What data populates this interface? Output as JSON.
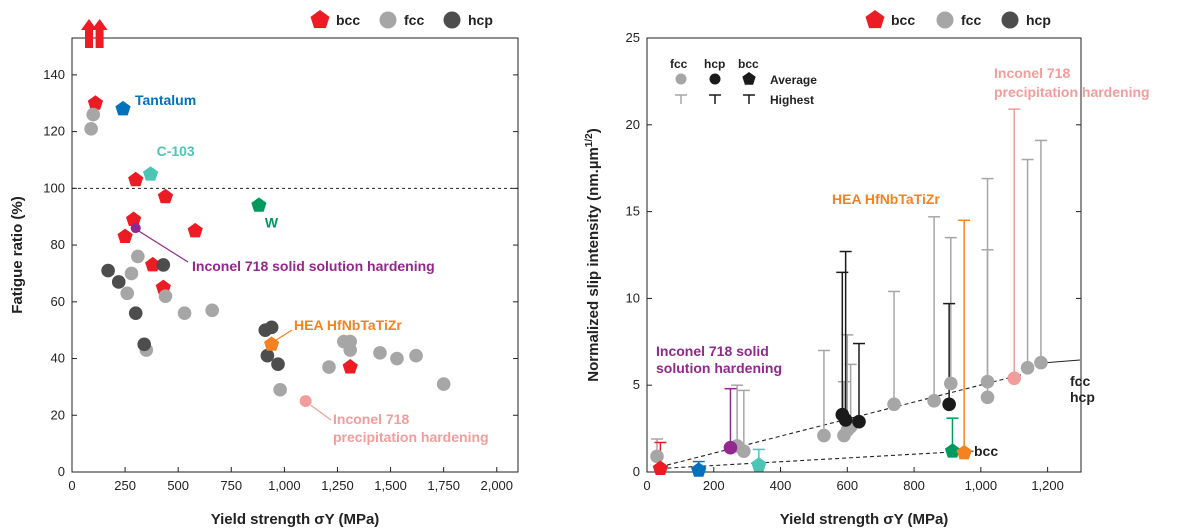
{
  "colors": {
    "bcc": "#ed1c24",
    "fcc": "#a6a6a6",
    "hcp": "#4d4d4d",
    "hcp_avg": "#1a1a1a",
    "tantalum": "#0072bc",
    "c103": "#4cc5b5",
    "w": "#009a5e",
    "inconel_ss": "#92278f",
    "hea": "#f58220",
    "inconel_ph": "#f29d9b"
  },
  "chart_data": [
    {
      "type": "scatter",
      "xlabel": "Yield strength σY (MPa)",
      "ylabel": "Fatigue ratio (%)",
      "xlim": [
        0,
        2100
      ],
      "ylim": [
        0,
        153
      ],
      "xticks": [
        0,
        250,
        500,
        750,
        1000,
        1250,
        1500,
        1750,
        2000
      ],
      "xtick_labels": [
        "0",
        "250",
        "500",
        "750",
        "1,000",
        "1,250",
        "1,500",
        "1,750",
        "2,000"
      ],
      "yticks": [
        0,
        20,
        40,
        60,
        80,
        100,
        120,
        140
      ],
      "reference_line": 100,
      "legend": [
        "bcc",
        "fcc",
        "hcp"
      ],
      "offscale_arrows": [
        {
          "x": 80
        },
        {
          "x": 130
        }
      ],
      "series": [
        {
          "name": "bcc",
          "color": "#ed1c24",
          "marker": "pentagon",
          "points": [
            [
              110,
              130
            ],
            [
              300,
              103
            ],
            [
              440,
              97
            ],
            [
              290,
              89
            ],
            [
              580,
              85
            ],
            [
              250,
              83
            ],
            [
              380,
              73
            ],
            [
              430,
              65
            ],
            [
              1310,
              37
            ]
          ]
        },
        {
          "name": "fcc",
          "color": "#a6a6a6",
          "marker": "circle",
          "points": [
            [
              100,
              126
            ],
            [
              90,
              121
            ],
            [
              310,
              76
            ],
            [
              280,
              70
            ],
            [
              440,
              62
            ],
            [
              260,
              63
            ],
            [
              530,
              56
            ],
            [
              660,
              57
            ],
            [
              350,
              43
            ],
            [
              1280,
              46
            ],
            [
              1310,
              46
            ],
            [
              1310,
              43
            ],
            [
              1450,
              42
            ],
            [
              1530,
              40
            ],
            [
              1620,
              41
            ],
            [
              1210,
              37
            ],
            [
              980,
              29
            ],
            [
              1750,
              31
            ]
          ]
        },
        {
          "name": "hcp",
          "color": "#4d4d4d",
          "marker": "circle",
          "points": [
            [
              170,
              71
            ],
            [
              220,
              67
            ],
            [
              430,
              73
            ],
            [
              300,
              56
            ],
            [
              340,
              45
            ],
            [
              910,
              50
            ],
            [
              940,
              51
            ],
            [
              920,
              41
            ],
            [
              970,
              38
            ]
          ]
        }
      ],
      "annotations": [
        {
          "label": "Tantalum",
          "x": 240,
          "y": 128,
          "color": "#0072bc",
          "marker": "pentagon"
        },
        {
          "label": "C-103",
          "x": 370,
          "y": 105,
          "color": "#4cc5b5",
          "marker": "pentagon"
        },
        {
          "label": "W",
          "x": 880,
          "y": 94,
          "color": "#009a5e",
          "marker": "pentagon"
        },
        {
          "label": "Inconel 718 solid solution hardening",
          "x": 300,
          "y": 86,
          "color": "#92278f",
          "marker": "circle"
        },
        {
          "label": "HEA HfNbTaTiZr",
          "x": 940,
          "y": 45,
          "color": "#f58220",
          "marker": "pentagon"
        },
        {
          "label": "Inconel 718",
          "label2": "precipitation hardening",
          "x": 1100,
          "y": 25,
          "color": "#f29d9b",
          "marker": "circle"
        }
      ]
    },
    {
      "type": "scatter",
      "xlabel": "Yield strength σY (MPa)",
      "ylabel": "Normalized slip intensity (nm.µm1/2)",
      "xlim": [
        0,
        1300
      ],
      "ylim": [
        0,
        25
      ],
      "xticks": [
        0,
        200,
        400,
        600,
        800,
        1000,
        1200
      ],
      "xtick_labels": [
        "0",
        "200",
        "400",
        "600",
        "800",
        "1,000",
        "1,200"
      ],
      "yticks": [
        0,
        5,
        10,
        15,
        20,
        25
      ],
      "legend": [
        "bcc",
        "fcc",
        "hcp"
      ],
      "inner_legend": {
        "headers": [
          "fcc",
          "hcp",
          "bcc"
        ],
        "rows": [
          "Average",
          "Highest"
        ]
      },
      "series": [
        {
          "name": "fcc",
          "color": "#a6a6a6",
          "marker": "circle",
          "points": [
            [
              30,
              0.9,
              1.9
            ],
            [
              270,
              1.5,
              5.0
            ],
            [
              290,
              1.2,
              4.7
            ],
            [
              530,
              2.1,
              7.0
            ],
            [
              590,
              2.1,
              5.2
            ],
            [
              600,
              2.4,
              7.9
            ],
            [
              610,
              2.6,
              6.2
            ],
            [
              740,
              3.9,
              10.4
            ],
            [
              860,
              4.1,
              14.7
            ],
            [
              910,
              5.1,
              13.5
            ],
            [
              1020,
              5.2,
              16.9
            ],
            [
              1020,
              4.3,
              12.8
            ],
            [
              1140,
              6.0,
              18.0
            ],
            [
              1180,
              6.3,
              19.1
            ]
          ]
        },
        {
          "name": "hcp",
          "color": "#1a1a1a",
          "marker": "circle",
          "points": [
            [
              585,
              3.3,
              11.5
            ],
            [
              595,
              3.0,
              12.7
            ],
            [
              635,
              2.9,
              7.4
            ],
            [
              905,
              3.9,
              9.7
            ]
          ]
        },
        {
          "name": "bcc",
          "color": "#ed1c24",
          "marker": "pentagon",
          "points": [
            [
              40,
              0.2,
              1.7
            ]
          ]
        },
        {
          "name": "Tantalum",
          "color": "#0072bc",
          "marker": "pentagon",
          "points": [
            [
              155,
              0.1,
              0.6
            ]
          ]
        },
        {
          "name": "C-103",
          "color": "#4cc5b5",
          "marker": "pentagon",
          "points": [
            [
              335,
              0.4,
              1.3
            ]
          ]
        },
        {
          "name": "W",
          "color": "#009a5e",
          "marker": "pentagon",
          "points": [
            [
              915,
              1.2,
              3.1
            ]
          ]
        },
        {
          "name": "Inconel 718 solid solution hardening",
          "color": "#92278f",
          "marker": "circle",
          "points": [
            [
              250,
              1.4,
              4.8
            ]
          ]
        },
        {
          "name": "HEA HfNbTaTiZr",
          "color": "#f58220",
          "marker": "pentagon",
          "points": [
            [
              950,
              1.1,
              14.5
            ]
          ]
        },
        {
          "name": "Inconel 718 precipitation hardening",
          "color": "#f29d9b",
          "marker": "circle",
          "points": [
            [
              1100,
              5.4,
              20.9
            ]
          ]
        }
      ],
      "trend_lines": [
        {
          "label": "fcc",
          "label2": "hcp",
          "from": [
            40,
            0.3
          ],
          "to": [
            1120,
            5.6
          ]
        },
        {
          "label": "bcc",
          "from": [
            40,
            0.2
          ],
          "to": [
            960,
            1.2
          ]
        }
      ],
      "annotations": [
        {
          "label": "Inconel 718 solid",
          "label2": "solution hardening",
          "color": "#92278f"
        },
        {
          "label": "HEA HfNbTaTiZr",
          "color": "#f58220"
        },
        {
          "label": "Inconel 718",
          "label2": "precipitation hardening",
          "color": "#f29d9b"
        }
      ]
    }
  ]
}
